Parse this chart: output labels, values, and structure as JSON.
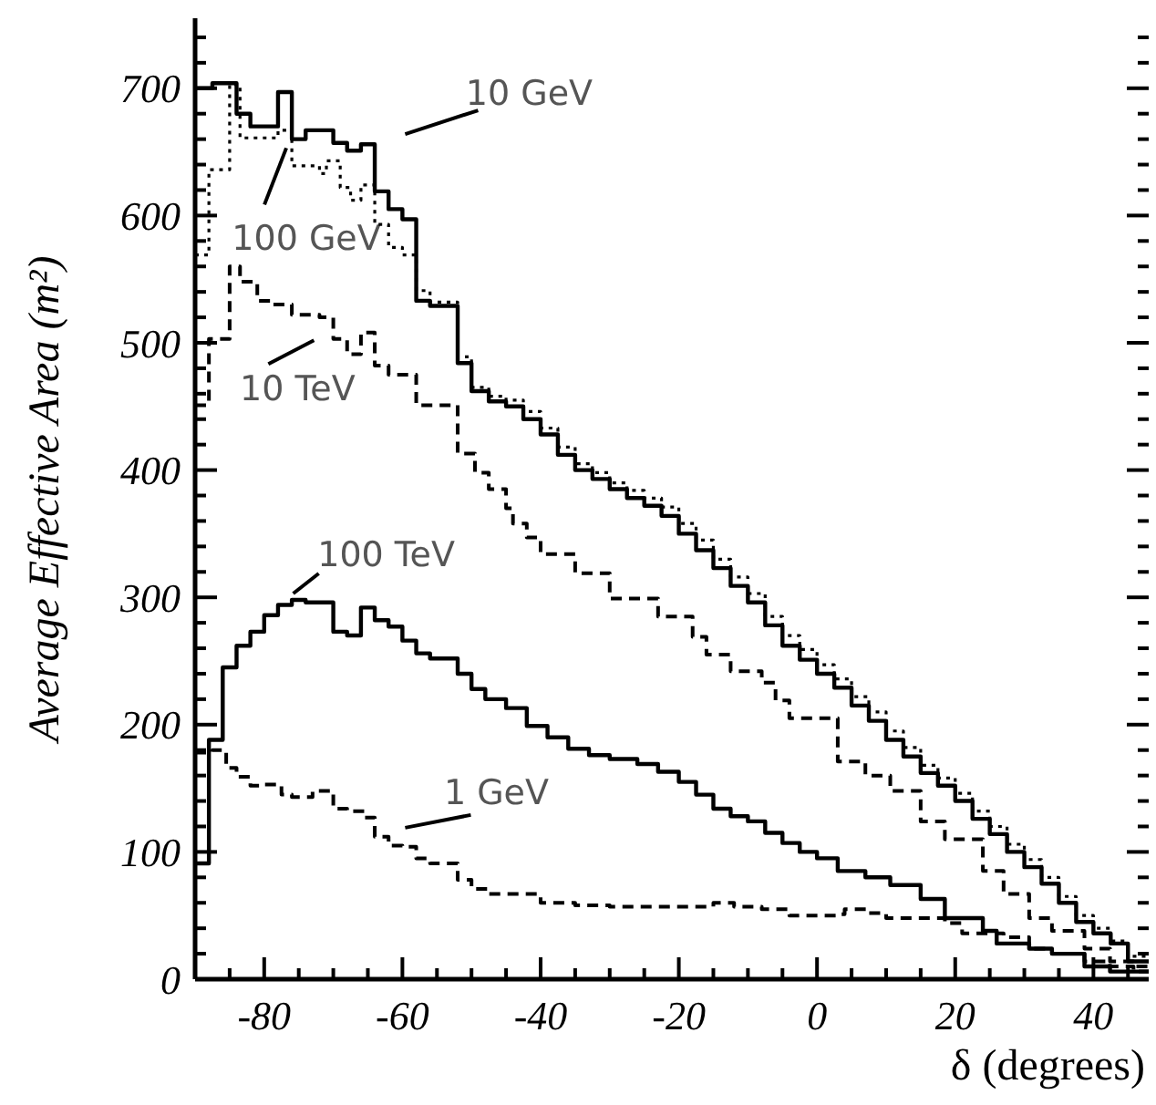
{
  "chart_data": {
    "type": "step",
    "xlabel": "δ (degrees)",
    "ylabel": "Average Effective Area (m²)",
    "xlim": [
      -90,
      48
    ],
    "ylim": [
      0,
      755
    ],
    "xticks": [
      {
        "value": -90,
        "label": null
      },
      {
        "value": -85,
        "label": null
      },
      -80,
      {
        "value": -75,
        "label": null
      },
      {
        "value": -70,
        "label": null
      },
      {
        "value": -65,
        "label": null
      },
      -60,
      {
        "value": -55,
        "label": null
      },
      {
        "value": -50,
        "label": null
      },
      {
        "value": -45,
        "label": null
      },
      -40,
      {
        "value": -35,
        "label": null
      },
      {
        "value": -30,
        "label": null
      },
      {
        "value": -25,
        "label": null
      },
      -20,
      {
        "value": -15,
        "label": null
      },
      {
        "value": -10,
        "label": null
      },
      {
        "value": -5,
        "label": null
      },
      0,
      {
        "value": 5,
        "label": null
      },
      {
        "value": 10,
        "label": null
      },
      {
        "value": 15,
        "label": null
      },
      20,
      {
        "value": 25,
        "label": null
      },
      {
        "value": 30,
        "label": null
      },
      {
        "value": 35,
        "label": null
      },
      40,
      {
        "value": 45,
        "label": null
      }
    ],
    "yticks": [
      0,
      {
        "value": 20,
        "label": null
      },
      {
        "value": 40,
        "label": null
      },
      {
        "value": 60,
        "label": null
      },
      {
        "value": 80,
        "label": null
      },
      100,
      {
        "value": 120,
        "label": null
      },
      {
        "value": 140,
        "label": null
      },
      {
        "value": 160,
        "label": null
      },
      {
        "value": 180,
        "label": null
      },
      200,
      {
        "value": 220,
        "label": null
      },
      {
        "value": 240,
        "label": null
      },
      {
        "value": 260,
        "label": null
      },
      {
        "value": 280,
        "label": null
      },
      300,
      {
        "value": 320,
        "label": null
      },
      {
        "value": 340,
        "label": null
      },
      {
        "value": 360,
        "label": null
      },
      {
        "value": 380,
        "label": null
      },
      400,
      {
        "value": 420,
        "label": null
      },
      {
        "value": 440,
        "label": null
      },
      {
        "value": 460,
        "label": null
      },
      {
        "value": 480,
        "label": null
      },
      500,
      {
        "value": 520,
        "label": null
      },
      {
        "value": 540,
        "label": null
      },
      {
        "value": 560,
        "label": null
      },
      {
        "value": 580,
        "label": null
      },
      600,
      {
        "value": 620,
        "label": null
      },
      {
        "value": 640,
        "label": null
      },
      {
        "value": 660,
        "label": null
      },
      {
        "value": 680,
        "label": null
      },
      700,
      {
        "value": 720,
        "label": null
      },
      {
        "value": 740,
        "label": null
      }
    ],
    "grid": false,
    "legend": false,
    "series": [
      {
        "color": "#000000",
        "line_style": "solid",
        "x": [
          -90,
          -87.5,
          -84,
          -82,
          -78,
          -76,
          -74,
          -70,
          -68,
          -66,
          -64,
          -62,
          -60,
          -58,
          -56,
          -52,
          -50,
          -47.5,
          -45,
          -42.5,
          -40,
          -37.5,
          -35,
          -32.5,
          -30,
          -27.5,
          -25,
          -22.5,
          -20,
          -17.5,
          -15,
          -12.5,
          -10,
          -7.5,
          -5,
          -2.5,
          0,
          2.5,
          5,
          7.5,
          10,
          12.5,
          15,
          17.5,
          20,
          22.5,
          25,
          27.5,
          30,
          32.5,
          35,
          37.5,
          40,
          42.5,
          45,
          48
        ],
        "values": [
          700,
          704,
          680,
          670,
          697,
          660,
          667,
          657,
          651,
          656,
          619,
          605,
          597,
          533,
          529,
          484,
          462,
          454,
          450,
          440,
          428,
          412,
          400,
          393,
          385,
          378,
          372,
          364,
          350,
          337,
          323,
          309,
          296,
          278,
          262,
          251,
          240,
          229,
          215,
          203,
          188,
          175,
          162,
          152,
          140,
          126,
          114,
          100,
          88,
          75,
          60,
          45,
          36,
          28,
          14,
          14
        ]
      },
      {
        "color": "#000000",
        "line_style": "dotted",
        "x": [
          -90,
          -88,
          -85,
          -83.5,
          -78,
          -76,
          -72,
          -71,
          -69,
          -67.5,
          -66,
          -64,
          -62,
          -60,
          -58,
          -56,
          -52,
          -50,
          -47.5,
          -45,
          -42.5,
          -40,
          -37.5,
          -35,
          -32.5,
          -30,
          -27.5,
          -25,
          -22.5,
          -20,
          -17.5,
          -15,
          -12.5,
          -10,
          -7.5,
          -5,
          -2.5,
          0,
          2.5,
          5,
          7.5,
          10,
          12.5,
          15,
          17.5,
          20,
          22.5,
          25,
          27.5,
          30,
          32.5,
          35,
          37.5,
          40,
          42.5,
          45,
          48
        ],
        "values": [
          569,
          636,
          703,
          661,
          667,
          639,
          633,
          643,
          622,
          612,
          624,
          593,
          575,
          569,
          541,
          532,
          489,
          465,
          458,
          455,
          446,
          433,
          418,
          405,
          398,
          390,
          384,
          378,
          371,
          358,
          345,
          330,
          316,
          303,
          285,
          270,
          259,
          247,
          236,
          222,
          210,
          195,
          182,
          168,
          158,
          146,
          132,
          120,
          106,
          94,
          80,
          65,
          50,
          40,
          30,
          18,
          18
        ]
      },
      {
        "color": "#000000",
        "line_style": "dashed",
        "x": [
          -90,
          -88,
          -85,
          -83.5,
          -81,
          -79,
          -76,
          -72,
          -70,
          -68,
          -66,
          -64,
          -62,
          -58,
          -52,
          -49.5,
          -47.5,
          -45,
          -44,
          -42,
          -40,
          -35,
          -30,
          -23,
          -18,
          -16,
          -12.5,
          -8,
          -6,
          -4,
          3,
          7,
          10.6,
          15,
          18.5,
          24,
          27,
          30.7,
          34,
          38.7,
          42.4,
          45.8,
          48
        ],
        "values": [
          451,
          503,
          560,
          548,
          533,
          530,
          522,
          520,
          503,
          491,
          508,
          482,
          475,
          451,
          413,
          398,
          385,
          370,
          358,
          347,
          334,
          319,
          299,
          285,
          269,
          255,
          242,
          233,
          219,
          205,
          171,
          160,
          148,
          124,
          110,
          85,
          67,
          48,
          38,
          24,
          14,
          10,
          10
        ]
      },
      {
        "color": "#000000",
        "line_style": "solid",
        "x": [
          -90,
          -88,
          -86,
          -84,
          -82,
          -80,
          -78,
          -76,
          -74,
          -70,
          -68,
          -66,
          -64,
          -62,
          -60,
          -58,
          -56,
          -52,
          -50,
          -48,
          -45,
          -42,
          -39,
          -36,
          -33,
          -30,
          -26,
          -23,
          -20,
          -17.5,
          -15,
          -12.5,
          -10,
          -7.5,
          -5,
          -2.5,
          0,
          3,
          7,
          10.6,
          15,
          18.5,
          24,
          26,
          30.7,
          34,
          38.7,
          42.4,
          48
        ],
        "values": [
          91,
          188,
          245,
          262,
          273,
          286,
          294,
          298,
          296,
          273,
          270,
          292,
          282,
          277,
          266,
          256,
          252,
          240,
          228,
          220,
          213,
          199,
          190,
          181,
          176,
          173,
          169,
          163,
          155,
          145,
          134,
          128,
          124,
          115,
          107,
          100,
          95,
          85,
          80,
          74,
          63,
          48,
          38,
          28,
          24,
          20,
          10,
          6,
          6
        ]
      },
      {
        "color": "#000000",
        "line_style": "dashed",
        "x": [
          -90,
          -87.5,
          -85.5,
          -84,
          -82,
          -80,
          -77.5,
          -76,
          -73,
          -70,
          -68,
          -65.5,
          -64,
          -62,
          -60,
          -58,
          -56,
          -52,
          -50,
          -47.5,
          -44,
          -40,
          -35,
          -30,
          -20,
          -15,
          -12,
          -8,
          -4,
          3,
          4,
          7.5,
          10,
          18.5,
          21,
          27,
          30.7,
          34,
          38.7,
          42.4,
          45.8,
          48
        ],
        "values": [
          178,
          180,
          166,
          159,
          152,
          153,
          145,
          143,
          148,
          134,
          132,
          127,
          112,
          105,
          104,
          95,
          91,
          78,
          71,
          67,
          67,
          60,
          58,
          57,
          57,
          60,
          57,
          55,
          50,
          51,
          55,
          52,
          48,
          44,
          36,
          33,
          24,
          20,
          14,
          10,
          6,
          6
        ]
      }
    ],
    "annotations": [
      "10 GeV",
      "100 GeV",
      "10 TeV",
      "100 TeV",
      "1 GeV"
    ]
  }
}
